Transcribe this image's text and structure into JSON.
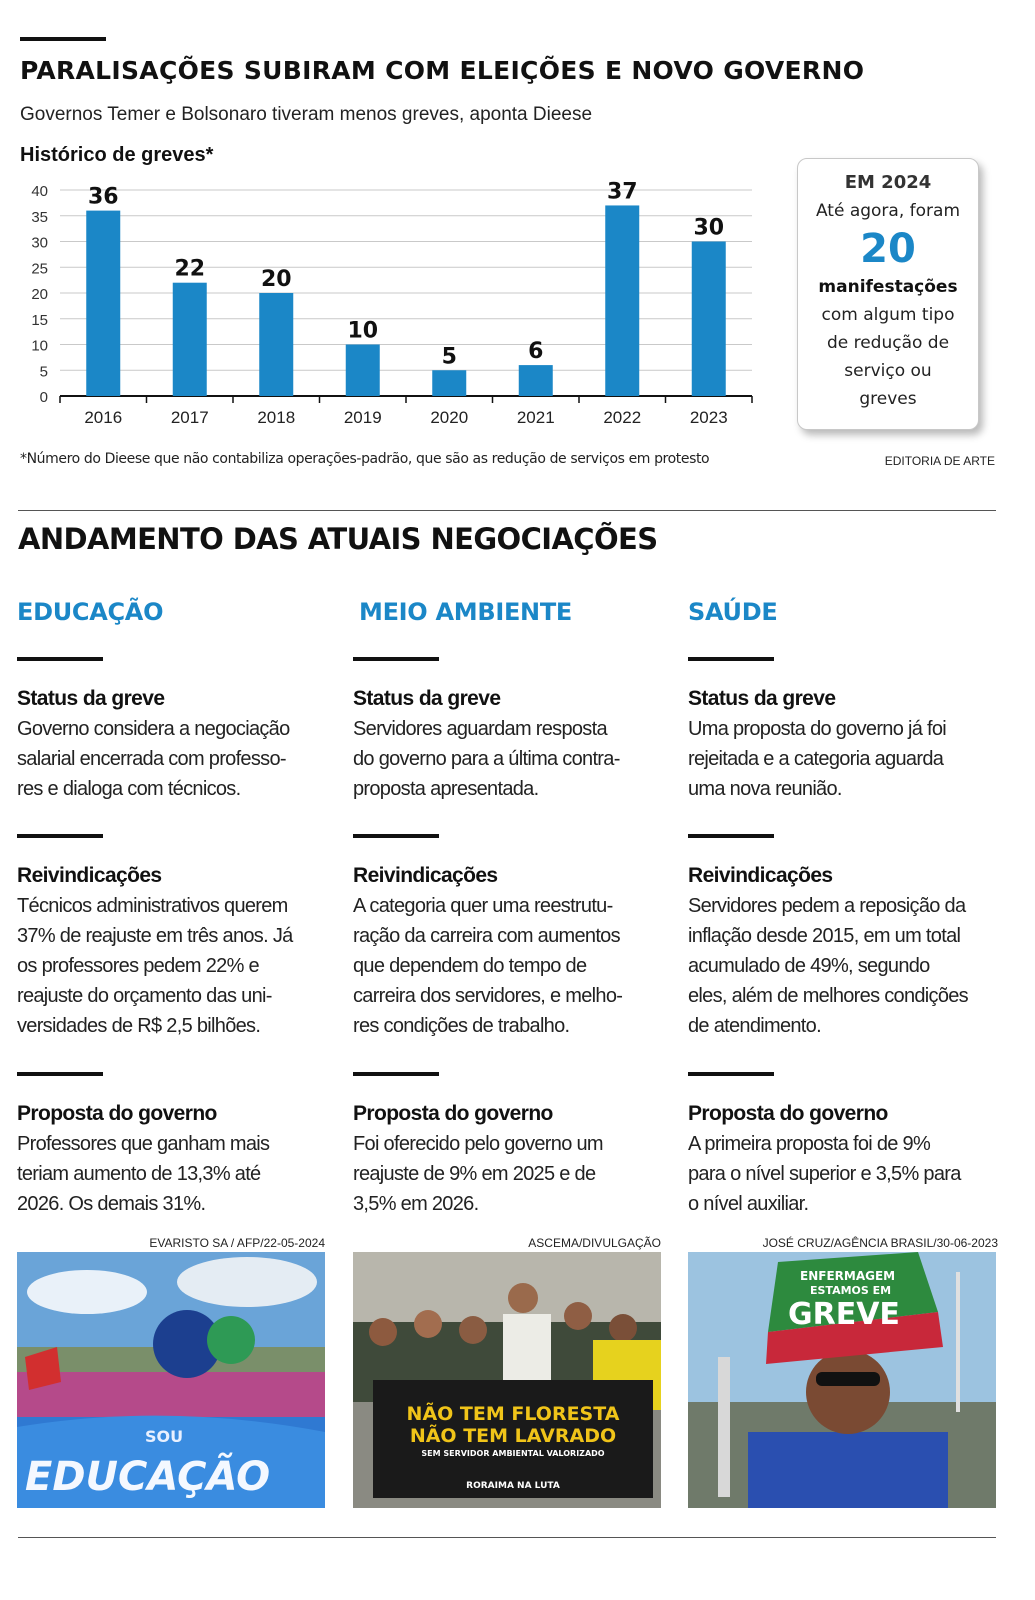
{
  "header": {
    "title": "PARALISAÇÕES SUBIRAM COM ELEIÇÕES E NOVO GOVERNO",
    "subtitle": "Governos Temer e Bolsonaro tiveram menos greves, aponta Dieese"
  },
  "chart_data": {
    "type": "bar",
    "title": "Histórico de greves*",
    "categories": [
      "2016",
      "2017",
      "2018",
      "2019",
      "2020",
      "2021",
      "2022",
      "2023"
    ],
    "values": [
      36,
      22,
      20,
      10,
      5,
      6,
      37,
      30
    ],
    "data_labels": [
      "36",
      "22",
      "20",
      "10",
      "5",
      "6",
      "37",
      "30"
    ],
    "ylim": [
      0,
      40
    ],
    "y_ticks": [
      "0",
      "5",
      "10",
      "15",
      "20",
      "25",
      "30",
      "35",
      "40"
    ],
    "grid": true,
    "bar_color": "#1b87c7",
    "xlabel": "",
    "ylabel": ""
  },
  "callout": {
    "heading": "EM 2024",
    "line1": "Até agora, foram",
    "number": "20",
    "bold_word": "manifestações",
    "lines": [
      "com algum tipo",
      "de redução de",
      "serviço ou",
      "greves"
    ]
  },
  "footnote": "*Número do Dieese que não contabiliza operações-padrão, que são as redução de serviços em protesto",
  "credit": "EDITORIA DE ARTE",
  "section": {
    "title": "ANDAMENTO DAS ATUAIS NEGOCIAÇÕES",
    "columns": [
      {
        "category": "EDUCAÇÃO",
        "status_title": "Status da greve",
        "status_lines": [
          "Governo considera a negociação",
          "salarial encerrada com professo-",
          "res e dialoga com técnicos."
        ],
        "claims_title": "Reivindicações",
        "claims_lines": [
          "Técnicos administrativos querem",
          "37% de reajuste em três anos. Já",
          "os professores pedem 22% e",
          "reajuste do orçamento das uni-",
          "versidades de R$ 2,5 bilhões."
        ],
        "proposal_title": "Proposta do governo",
        "proposal_lines": [
          "Professores que ganham mais",
          "teriam aumento de 13,3% até",
          "2026. Os demais 31%."
        ],
        "photo_credit": "EVARISTO SA / AFP/22-05-2024",
        "photo_text": [
          "SOU",
          "EDUCAÇÃO"
        ]
      },
      {
        "category": "MEIO AMBIENTE",
        "status_title": "Status da greve",
        "status_lines": [
          "Servidores aguardam resposta",
          "do governo para a última contra-",
          "proposta apresentada."
        ],
        "claims_title": "Reivindicações",
        "claims_lines": [
          "A categoria quer uma reestrutu-",
          "ração da carreira com aumentos",
          "que dependem do tempo de",
          "carreira dos servidores, e melho-",
          "res condições de trabalho."
        ],
        "proposal_title": "Proposta do governo",
        "proposal_lines": [
          "Foi oferecido pelo governo um",
          "reajuste de 9% em 2025 e de",
          "3,5% em 2026."
        ],
        "photo_credit": "ASCEMA/DIVULGAÇÃO",
        "photo_text": [
          "NÃO TEM FLORESTA",
          "NÃO TEM LAVRADO",
          "SEM SERVIDOR AMBIENTAL VALORIZADO",
          "RORAIMA NA LUTA"
        ]
      },
      {
        "category": "SAÚDE",
        "status_title": "Status da greve",
        "status_lines": [
          "Uma proposta do governo já foi",
          "rejeitada e a categoria aguarda",
          "uma nova reunião."
        ],
        "claims_title": "Reivindicações",
        "claims_lines": [
          "Servidores pedem a reposição da",
          "inflação desde 2015, em um total",
          "acumulado de 49%, segundo",
          "eles, além de melhores condições",
          "de atendimento."
        ],
        "proposal_title": "Proposta do governo",
        "proposal_lines": [
          "A primeira proposta foi de 9%",
          "para o nível superior e 3,5% para",
          "o nível auxiliar."
        ],
        "photo_credit": "JOSÉ CRUZ/AGÊNCIA BRASIL/30-06-2023",
        "photo_text": [
          "ENFERMAGEM",
          "ESTAMOS EM",
          "GREVE"
        ]
      }
    ]
  }
}
